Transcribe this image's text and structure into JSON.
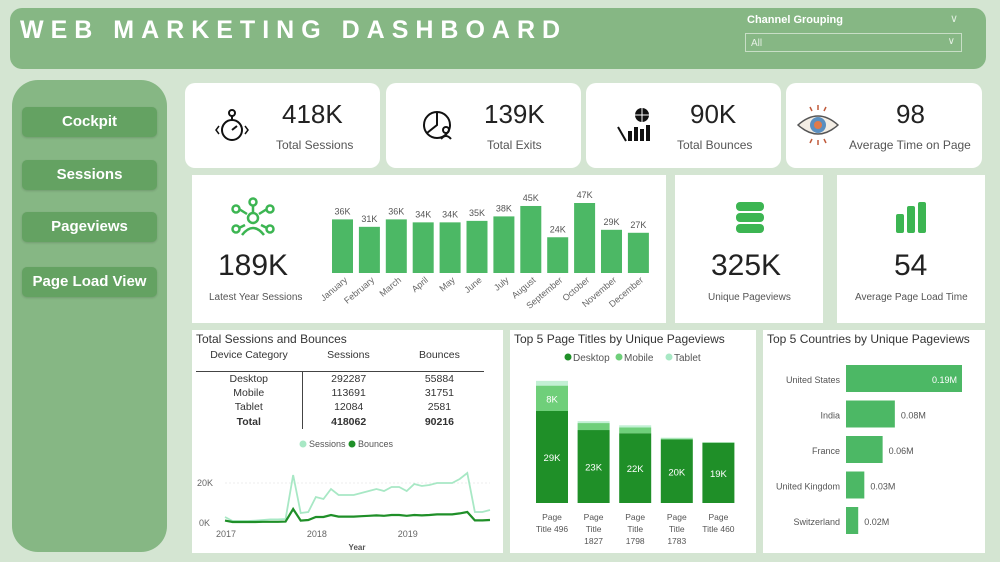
{
  "header": {
    "title": "WEB MARKETING DASHBOARD",
    "slicer_label": "Channel Grouping",
    "slicer_value": "All"
  },
  "nav": [
    "Cockpit",
    "Sessions",
    "Pageviews",
    "Page Load View"
  ],
  "kpis": [
    {
      "value": "418K",
      "label": "Total Sessions",
      "icon": "stopwatch-icon"
    },
    {
      "value": "139K",
      "label": "Total Exits",
      "icon": "pie-user-icon"
    },
    {
      "value": "90K",
      "label": "Total Bounces",
      "icon": "globe-chart-icon"
    },
    {
      "value": "98",
      "label": "Average Time on Page",
      "icon": "eye-icon"
    }
  ],
  "latest_year": {
    "value": "189K",
    "label": "Latest Year Sessions"
  },
  "unique_pageviews": {
    "value": "325K",
    "label": "Unique Pageviews"
  },
  "avg_load": {
    "value": "54",
    "label": "Average Page Load Time"
  },
  "colors": {
    "accent": "#4cb865",
    "dark_green": "#1f8f28",
    "mid_green": "#6fcf7a",
    "light_green": "#a8e8c5",
    "header": "#86b784",
    "bg": "#d4e5d2"
  },
  "table": {
    "title": "Total Sessions and Bounces",
    "headers": [
      "Device Category",
      "Sessions",
      "Bounces"
    ],
    "rows": [
      [
        "Desktop",
        "292287",
        "55884"
      ],
      [
        "Mobile",
        "113691",
        "31751"
      ],
      [
        "Tablet",
        "12084",
        "2581"
      ]
    ],
    "total": [
      "Total",
      "418062",
      "90216"
    ]
  },
  "chart_data": [
    {
      "type": "bar",
      "categories": [
        "January",
        "February",
        "March",
        "April",
        "May",
        "June",
        "July",
        "August",
        "September",
        "October",
        "November",
        "December"
      ],
      "values": [
        36,
        31,
        36,
        34,
        34,
        35,
        38,
        45,
        24,
        47,
        29,
        27
      ],
      "labels": [
        "36K",
        "31K",
        "36K",
        "34K",
        "34K",
        "35K",
        "38K",
        "45K",
        "24K",
        "47K",
        "29K",
        "27K"
      ]
    },
    {
      "type": "line",
      "legend": [
        "Sessions",
        "Bounces"
      ],
      "xlabel": "Year",
      "x_ticks": [
        "2017",
        "2018",
        "2019"
      ],
      "y_ticks": [
        "0K",
        "20K"
      ],
      "ylim": [
        0,
        30000
      ],
      "x": [
        "2017-01",
        "2017-02",
        "2017-03",
        "2017-04",
        "2017-05",
        "2017-06",
        "2017-07",
        "2017-08",
        "2017-09",
        "2017-10",
        "2017-11",
        "2017-12",
        "2018-01",
        "2018-02",
        "2018-03",
        "2018-04",
        "2018-05",
        "2018-06",
        "2018-07",
        "2018-08",
        "2018-09",
        "2018-10",
        "2018-11",
        "2018-12",
        "2019-01",
        "2019-02",
        "2019-03",
        "2019-04",
        "2019-05",
        "2019-06",
        "2019-07",
        "2019-08",
        "2019-09",
        "2019-10",
        "2019-11",
        "2019-12"
      ],
      "series": [
        {
          "name": "Sessions",
          "values": [
            3000,
            1000,
            1000,
            1000,
            1200,
            1500,
            1800,
            1800,
            2000,
            24000,
            5000,
            5500,
            13000,
            12000,
            17000,
            14000,
            14000,
            14000,
            15000,
            16000,
            17000,
            16000,
            18000,
            18000,
            16000,
            19500,
            18500,
            19000,
            20000,
            20000,
            20000,
            22000,
            25000,
            5500,
            5500,
            6500
          ]
        },
        {
          "name": "Bounces",
          "values": [
            1200,
            500,
            500,
            500,
            500,
            600,
            600,
            600,
            700,
            7000,
            1200,
            1500,
            3000,
            3000,
            4000,
            3200,
            3200,
            3200,
            3400,
            3600,
            3800,
            3600,
            4000,
            4000,
            3600,
            4000,
            3800,
            4000,
            4300,
            4300,
            4300,
            4800,
            5500,
            1300,
            1300,
            1500
          ]
        }
      ]
    },
    {
      "type": "bar",
      "stacked": true,
      "title": "Top 5 Page Titles by Unique Pageviews",
      "legend": [
        "Desktop",
        "Mobile",
        "Tablet"
      ],
      "categories": [
        "Page Title 496",
        "Page Title 1827",
        "Page Title 1798",
        "Page Title 1783",
        "Page Title 460"
      ],
      "series": [
        {
          "name": "Desktop",
          "values": [
            29000,
            23000,
            22000,
            20000,
            19000
          ],
          "labels": [
            "29K",
            "23K",
            "22K",
            "20K",
            "19K"
          ]
        },
        {
          "name": "Mobile",
          "values": [
            8000,
            2200,
            1800,
            300,
            100
          ],
          "labels": [
            "8K",
            "",
            "",
            "",
            ""
          ]
        },
        {
          "name": "Tablet",
          "values": [
            1500,
            600,
            700,
            300,
            100
          ]
        }
      ]
    },
    {
      "type": "bar",
      "orientation": "horizontal",
      "title": "Top 5 Countries by Unique Pageviews",
      "categories": [
        "United States",
        "India",
        "France",
        "United Kingdom",
        "Switzerland"
      ],
      "values": [
        0.19,
        0.08,
        0.06,
        0.03,
        0.02
      ],
      "labels": [
        "0.19M",
        "0.08M",
        "0.06M",
        "0.03M",
        "0.02M"
      ]
    }
  ]
}
